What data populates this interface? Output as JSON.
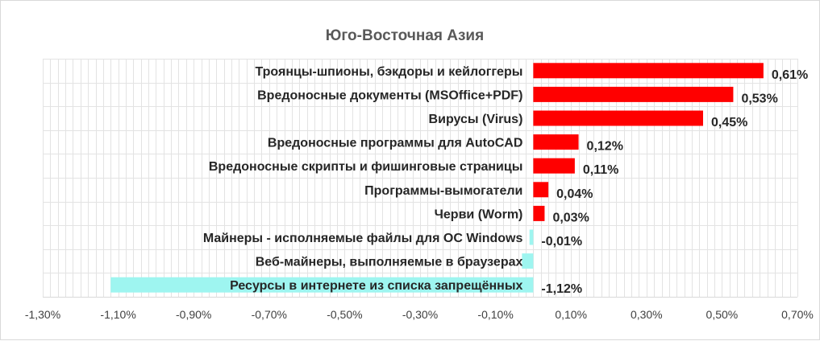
{
  "chart_data": {
    "type": "bar",
    "orientation": "horizontal",
    "title": "Юго-Восточная Азия",
    "xlabel": "",
    "ylabel": "",
    "xlim": [
      -1.3,
      0.7
    ],
    "x_ticks": [
      -1.3,
      -1.1,
      -0.9,
      -0.7,
      -0.5,
      -0.3,
      -0.1,
      0.1,
      0.3,
      0.5,
      0.7
    ],
    "x_tick_labels": [
      "-1,30%",
      "-1,10%",
      "-0,90%",
      "-0,70%",
      "-0,50%",
      "-0,30%",
      "-0,10%",
      "0,10%",
      "0,30%",
      "0,50%",
      "0,70%"
    ],
    "grid": true,
    "legend": "none",
    "categories": [
      "Троянцы-шпионы, бэкдоры и кейлоггеры",
      "Вредоносные документы (MSOffice+PDF)",
      "Вирусы (Virus)",
      "Вредоносные программы для AutoCAD",
      "Вредоносные скрипты и фишинговые страницы",
      "Программы-вымогатели",
      "Черви (Worm)",
      "Майнеры - исполняемые файлы для ОС Windows",
      "Веб-майнеры, выполняемые в браузерах",
      "Ресурсы в интернете из списка запрещённых"
    ],
    "values": [
      0.61,
      0.53,
      0.45,
      0.12,
      0.11,
      0.04,
      0.03,
      -0.01,
      -0.03,
      -1.12
    ],
    "data_labels": [
      "0,61%",
      "0,53%",
      "0,45%",
      "0,12%",
      "0,11%",
      "0,04%",
      "0,03%",
      "-0,01%",
      "",
      "-1,12%"
    ],
    "colors": {
      "positive": "#ff0000",
      "negative": "#9ef5f0"
    }
  }
}
